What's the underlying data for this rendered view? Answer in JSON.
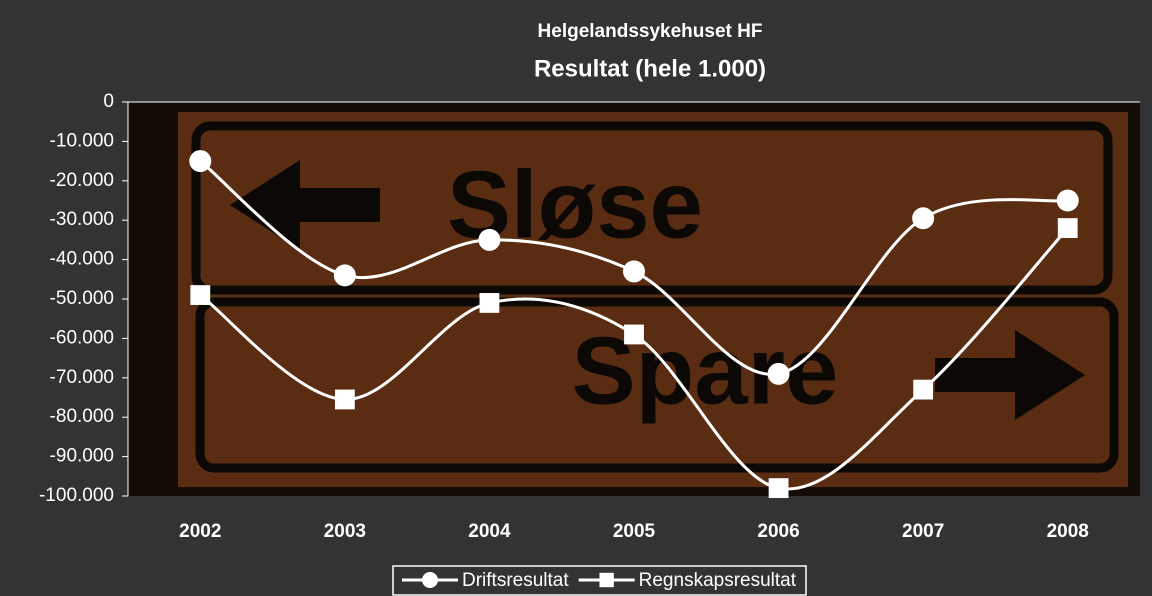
{
  "chart_data": {
    "type": "line",
    "title": "Helgelandssykehuset HF",
    "subtitle": "Resultat (hele 1.000)",
    "annotations": [
      "Sløse",
      "Spare"
    ],
    "categories": [
      "2002",
      "2003",
      "2004",
      "2005",
      "2006",
      "2007",
      "2008"
    ],
    "series": [
      {
        "name": "Driftsresultat",
        "color": "#ffffff",
        "marker": "circle",
        "values": [
          -15000,
          -44000,
          -35000,
          -43000,
          -69000,
          -29500,
          -25000
        ]
      },
      {
        "name": "Regnskapsresultat",
        "color": "#ffffff",
        "marker": "square",
        "values": [
          -49000,
          -75500,
          -51000,
          -59000,
          -98000,
          -73000,
          -32000
        ]
      }
    ],
    "ylim": [
      -100000,
      0
    ],
    "yticks": [
      0,
      {
        "value": -10000,
        "label": "-10.000"
      },
      {
        "value": -20000,
        "label": "-20.000"
      },
      {
        "value": -30000,
        "label": "-30.000"
      },
      {
        "value": -40000,
        "label": "-40.000"
      },
      {
        "value": -50000,
        "label": "-50.000"
      },
      {
        "value": -60000,
        "label": "-60.000"
      },
      {
        "value": -70000,
        "label": "-70.000"
      },
      {
        "value": -80000,
        "label": "-80.000"
      },
      {
        "value": -90000,
        "label": "-90.000"
      },
      {
        "value": -100000,
        "label": "-100.000"
      }
    ],
    "smooth": true,
    "legend": "bottom"
  }
}
